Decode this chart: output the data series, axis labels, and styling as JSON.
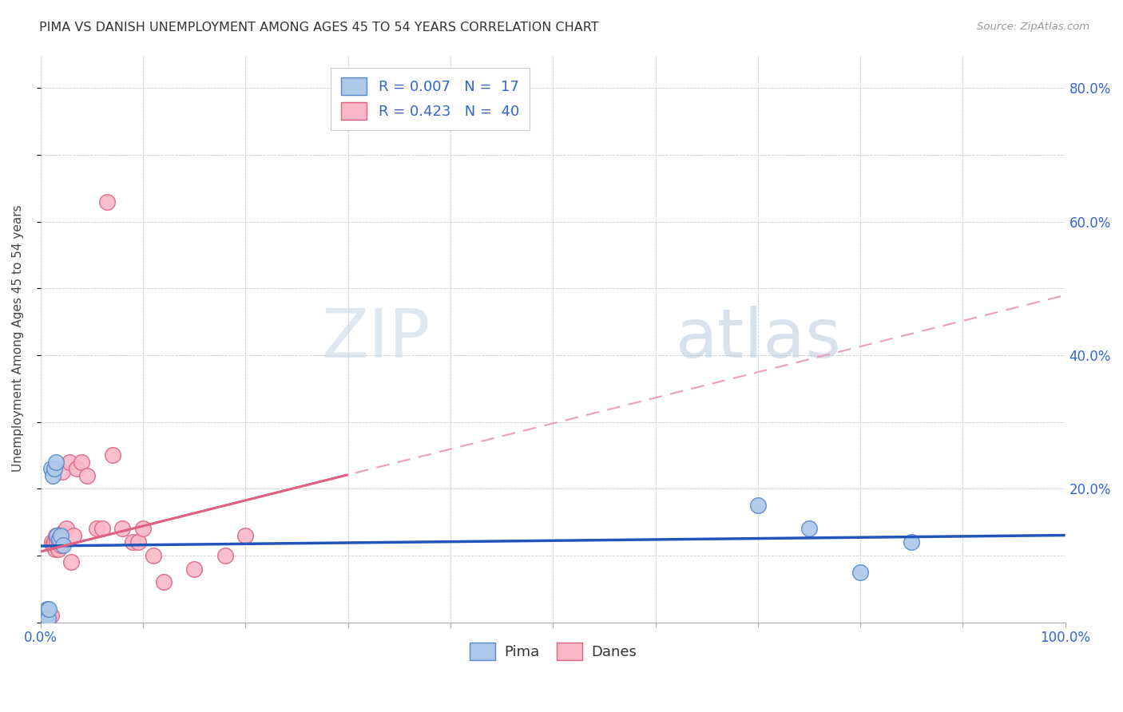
{
  "title": "PIMA VS DANISH UNEMPLOYMENT AMONG AGES 45 TO 54 YEARS CORRELATION CHART",
  "source": "Source: ZipAtlas.com",
  "ylabel": "Unemployment Among Ages 45 to 54 years",
  "xlim": [
    0.0,
    1.0
  ],
  "ylim": [
    0.0,
    0.85
  ],
  "xticks": [
    0.0,
    0.1,
    0.2,
    0.3,
    0.4,
    0.5,
    0.6,
    0.7,
    0.8,
    0.9,
    1.0
  ],
  "xtick_labels": [
    "0.0%",
    "",
    "",
    "",
    "",
    "",
    "",
    "",
    "",
    "",
    "100.0%"
  ],
  "yticks": [
    0.0,
    0.1,
    0.2,
    0.3,
    0.4,
    0.5,
    0.6,
    0.7,
    0.8
  ],
  "ytick_labels": [
    "",
    "",
    "20.0%",
    "",
    "40.0%",
    "",
    "60.0%",
    "",
    "80.0%"
  ],
  "pima_color": "#adc8e8",
  "danes_color": "#f9b8c8",
  "pima_edge": "#5588cc",
  "danes_edge": "#e06080",
  "trend_pima_color": "#2255bb",
  "trend_danes_solid_color": "#e06080",
  "trend_danes_dash_color": "#e8a0b8",
  "watermark_zip": "#c8d8e8",
  "watermark_atlas": "#a0b8d0",
  "pima_x": [
    0.003,
    0.005,
    0.006,
    0.007,
    0.008,
    0.01,
    0.012,
    0.013,
    0.015,
    0.016,
    0.018,
    0.02,
    0.022,
    0.7,
    0.75,
    0.8,
    0.85
  ],
  "pima_y": [
    0.01,
    0.01,
    0.02,
    0.005,
    0.02,
    0.23,
    0.22,
    0.23,
    0.24,
    0.13,
    0.125,
    0.13,
    0.115,
    0.175,
    0.14,
    0.075,
    0.12
  ],
  "danes_x": [
    0.002,
    0.003,
    0.004,
    0.005,
    0.006,
    0.007,
    0.008,
    0.009,
    0.01,
    0.011,
    0.012,
    0.013,
    0.014,
    0.015,
    0.016,
    0.017,
    0.018,
    0.02,
    0.021,
    0.022,
    0.025,
    0.028,
    0.03,
    0.032,
    0.035,
    0.04,
    0.045,
    0.055,
    0.06,
    0.065,
    0.07,
    0.08,
    0.09,
    0.095,
    0.1,
    0.11,
    0.12,
    0.15,
    0.18,
    0.2
  ],
  "danes_y": [
    0.005,
    0.005,
    0.005,
    0.01,
    0.01,
    0.015,
    0.01,
    0.01,
    0.01,
    0.12,
    0.115,
    0.12,
    0.11,
    0.13,
    0.12,
    0.11,
    0.12,
    0.115,
    0.225,
    0.135,
    0.14,
    0.24,
    0.09,
    0.13,
    0.23,
    0.24,
    0.22,
    0.14,
    0.14,
    0.63,
    0.25,
    0.14,
    0.12,
    0.12,
    0.14,
    0.1,
    0.06,
    0.08,
    0.1,
    0.13
  ]
}
